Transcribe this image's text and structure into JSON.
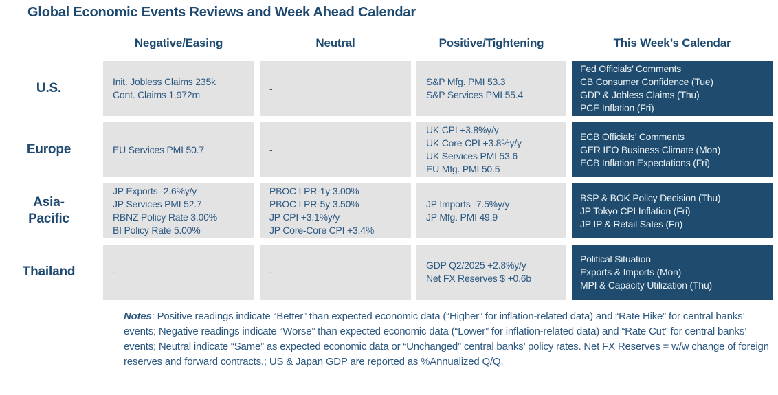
{
  "title": "Global Economic Events Reviews and Week Ahead Calendar",
  "columns": [
    "Negative/Easing",
    "Neutral",
    "Positive/Tightening",
    "This Week’s Calendar"
  ],
  "rows": [
    {
      "region": "U.S.",
      "negative": [
        "Init. Jobless Claims 235k",
        "Cont. Claims 1.972m"
      ],
      "neutral": [
        "-"
      ],
      "positive": [
        "S&P Mfg. PMI 53.3",
        "S&P Services PMI 55.4"
      ],
      "calendar": [
        "Fed Officials’ Comments",
        "CB Consumer Confidence (Tue)",
        "GDP & Jobless Claims (Thu)",
        "PCE Inflation (Fri)"
      ]
    },
    {
      "region": "Europe",
      "negative": [
        "EU Services PMI 50.7"
      ],
      "neutral": [
        "-"
      ],
      "positive": [
        "UK CPI +3.8%y/y",
        "UK Core CPI +3.8%y/y",
        "UK Services PMI 53.6",
        "EU Mfg. PMI 50.5"
      ],
      "calendar": [
        "ECB Officials’ Comments",
        "GER IFO Business Climate (Mon)",
        "ECB Inflation Expectations (Fri)"
      ]
    },
    {
      "region": "Asia-\nPacific",
      "negative": [
        "JP Exports -2.6%y/y",
        "JP Services PMI 52.7",
        "RBNZ Policy Rate 3.00%",
        "BI Policy Rate 5.00%"
      ],
      "neutral": [
        "PBOC LPR-1y 3.00%",
        "PBOC LPR-5y 3.50%",
        "JP CPI +3.1%y/y",
        "JP Core-Core CPI +3.4%"
      ],
      "positive": [
        "JP Imports -7.5%y/y",
        "JP Mfg. PMI 49.9"
      ],
      "calendar": [
        "BSP & BOK Policy Decision (Thu)",
        "JP Tokyo CPI Inflation (Fri)",
        "JP IP & Retail Sales (Fri)"
      ]
    },
    {
      "region": "Thailand",
      "negative": [
        "-"
      ],
      "neutral": [
        "-"
      ],
      "positive": [
        "GDP Q2/2025 +2.8%y/y",
        "Net FX Reserves $ +0.6b"
      ],
      "calendar": [
        "Political Situation",
        "Exports & Imports (Mon)",
        "MPI & Capacity Utilization (Thu)"
      ]
    }
  ],
  "notes": {
    "label": "Notes",
    "text": ": Positive readings indicate “Better” than expected economic data (“Higher” for inflation-related data) and “Rate Hike” for central banks’ events; Negative readings indicate “Worse” than expected economic data (“Lower” for inflation-related data) and “Rate Cut” for central banks’ events; Neutral indicate “Same” as expected economic data or “Unchanged” central banks’ policy rates. Net FX Reserves = w/w change of foreign reserves and forward contracts.; US & Japan GDP are reported as %Annualized Q/Q."
  },
  "colors": {
    "heading_navy": "#1F4A70",
    "body_navy": "#2C5880",
    "cell_gray": "#E3E3E4",
    "calendar_dark_blue": "#1F4C6E",
    "calendar_text": "#EAF2F7"
  }
}
